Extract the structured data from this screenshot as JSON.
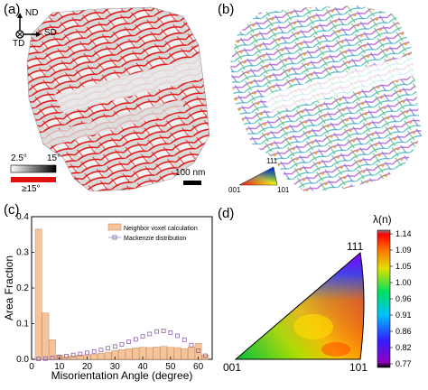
{
  "panels": {
    "a": {
      "label": "(a)",
      "axes": {
        "nd": "ND",
        "sd": "SD",
        "td": "TD"
      },
      "grayscale_legend": {
        "min": "2.5°",
        "max": "15°"
      },
      "red_legend": "≥15°",
      "scale_bar": "100 nm",
      "colors": {
        "boundary_red": "#e01010",
        "gray_light": "#e6e6e6",
        "gray_dark": "#7a7a7a"
      }
    },
    "b": {
      "label": "(b)",
      "ipf_key": {
        "top": "111",
        "left": "001",
        "right": "101"
      }
    },
    "c": {
      "label": "(c)"
    },
    "d": {
      "label": "(d)",
      "corner_top": "111",
      "corner_left": "001",
      "corner_right": "101",
      "colorbar": {
        "title": "λ(n)",
        "ticks": [
          "1.14",
          "1.09",
          "1.05",
          "1.00",
          "0.96",
          "0.91",
          "0.86",
          "0.82",
          "0.77"
        ]
      }
    }
  },
  "chart_data": {
    "type": "bar",
    "xlabel": "Misorientation Angle (degree)",
    "ylabel": "Area Fraction",
    "xlim": [
      0,
      65
    ],
    "ylim": [
      0,
      0.4
    ],
    "xticks": [
      "0",
      "10",
      "20",
      "30",
      "40",
      "50",
      "60"
    ],
    "yticks": [
      "0.0",
      "0.1",
      "0.2",
      "0.3",
      "0.4"
    ],
    "legend_position": "top-right",
    "series": [
      {
        "name": "Neighbor voxel calculation",
        "kind": "bar",
        "color": "#f5c49a",
        "x": [
          2.5,
          5,
          7.5,
          10,
          12.5,
          15,
          17.5,
          20,
          22.5,
          25,
          27.5,
          30,
          32.5,
          35,
          37.5,
          40,
          42.5,
          45,
          47.5,
          50,
          52.5,
          55,
          57.5,
          60,
          62.5
        ],
        "values": [
          0.365,
          0.13,
          0.055,
          0.012,
          0.008,
          0.01,
          0.012,
          0.013,
          0.014,
          0.017,
          0.02,
          0.025,
          0.027,
          0.03,
          0.032,
          0.034,
          0.033,
          0.035,
          0.036,
          0.034,
          0.033,
          0.03,
          0.035,
          0.045,
          0.012
        ]
      },
      {
        "name": "Mackenzie distribution",
        "kind": "marker",
        "color": "#8a5fa8",
        "x": [
          2.5,
          5,
          7.5,
          10,
          12.5,
          15,
          17.5,
          20,
          22.5,
          25,
          27.5,
          30,
          32.5,
          35,
          37.5,
          40,
          42.5,
          45,
          47.5,
          50,
          52.5,
          55,
          57.5,
          60,
          62.5
        ],
        "values": [
          0.001,
          0.002,
          0.004,
          0.006,
          0.009,
          0.012,
          0.015,
          0.018,
          0.022,
          0.026,
          0.031,
          0.036,
          0.042,
          0.049,
          0.056,
          0.064,
          0.071,
          0.078,
          0.08,
          0.075,
          0.066,
          0.055,
          0.04,
          0.024,
          0.01
        ]
      }
    ]
  }
}
